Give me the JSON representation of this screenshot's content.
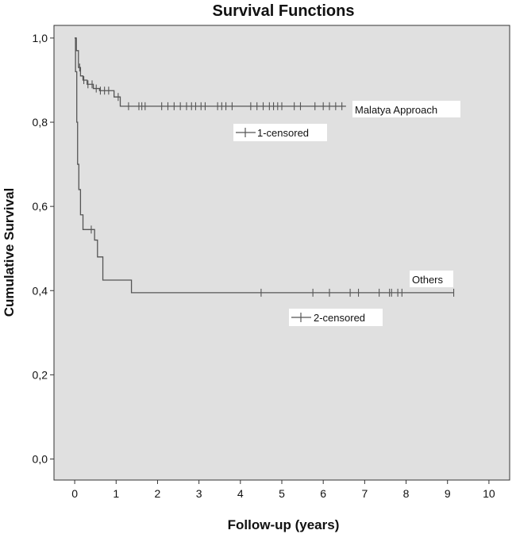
{
  "chart_data": {
    "type": "line",
    "title": "Survival Functions",
    "xlabel": "Follow-up (years)",
    "ylabel": "Cumulative Survival",
    "xlim": [
      -0.5,
      10.5
    ],
    "ylim": [
      -0.05,
      1.03
    ],
    "xticks": [
      0,
      1,
      2,
      3,
      4,
      5,
      6,
      7,
      8,
      9,
      10
    ],
    "yticks": [
      0.0,
      0.2,
      0.4,
      0.6,
      0.8,
      1.0
    ],
    "ytick_labels": [
      "0,0",
      "0,2",
      "0,4",
      "0,6",
      "0,8",
      "1,0"
    ],
    "grid": false,
    "colors": {
      "plot_background": "#e0e0e0",
      "line": "#555555",
      "axis": "#333333"
    },
    "series": [
      {
        "name": "Malatya Approach",
        "steps": [
          [
            0,
            1.0
          ],
          [
            0.04,
            0.97
          ],
          [
            0.09,
            0.93
          ],
          [
            0.14,
            0.91
          ],
          [
            0.2,
            0.9
          ],
          [
            0.3,
            0.89
          ],
          [
            0.45,
            0.88
          ],
          [
            0.6,
            0.875
          ],
          [
            0.95,
            0.86
          ],
          [
            1.1,
            0.838
          ],
          [
            6.55,
            0.838
          ]
        ],
        "censored": [
          0.12,
          0.22,
          0.32,
          0.42,
          0.52,
          0.62,
          0.72,
          0.82,
          1.05,
          1.3,
          1.55,
          1.62,
          1.7,
          2.1,
          2.25,
          2.4,
          2.55,
          2.7,
          2.82,
          2.92,
          3.05,
          3.15,
          3.45,
          3.55,
          3.65,
          3.8,
          4.25,
          4.4,
          4.55,
          4.7,
          4.8,
          4.9,
          5.0,
          5.3,
          5.45,
          5.8,
          6.0,
          6.15,
          6.3,
          6.45
        ]
      },
      {
        "name": "Others",
        "steps": [
          [
            0,
            1.0
          ],
          [
            0.02,
            0.92
          ],
          [
            0.05,
            0.8
          ],
          [
            0.07,
            0.7
          ],
          [
            0.1,
            0.64
          ],
          [
            0.14,
            0.58
          ],
          [
            0.2,
            0.545
          ],
          [
            0.48,
            0.52
          ],
          [
            0.55,
            0.48
          ],
          [
            0.68,
            0.425
          ],
          [
            1.37,
            0.395
          ],
          [
            9.15,
            0.395
          ]
        ],
        "censored": [
          0.4,
          4.5,
          5.75,
          6.15,
          6.65,
          6.85,
          7.35,
          7.6,
          7.65,
          7.8,
          7.9,
          9.15
        ]
      }
    ],
    "annotations": {
      "malatya_label": "Malatya Approach",
      "others_label": "Others",
      "legend1_label": "1-censored",
      "legend2_label": "2-censored"
    }
  }
}
